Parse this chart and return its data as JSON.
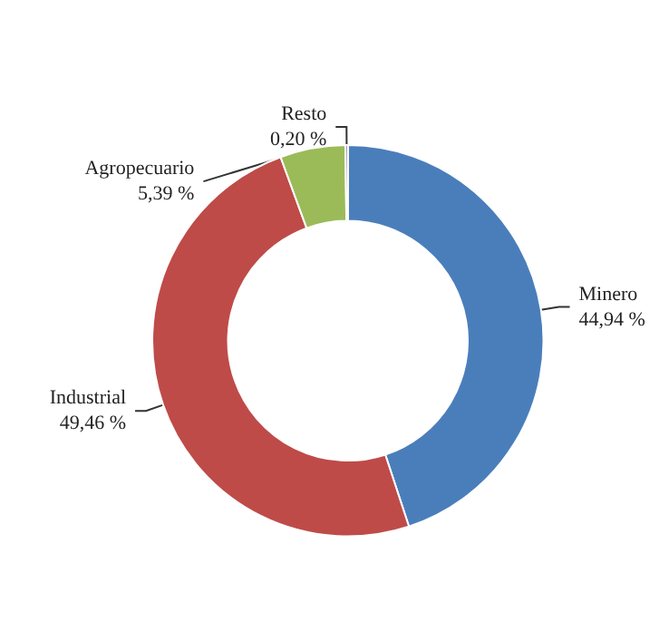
{
  "chart_data": {
    "type": "donut",
    "categories": [
      "Minero",
      "Industrial",
      "Agropecuario",
      "Resto"
    ],
    "values": [
      44.94,
      49.46,
      5.39,
      0.2
    ],
    "colors": [
      "#4a7ebb",
      "#be4b48",
      "#9bbb59",
      "#8064a2"
    ],
    "value_labels": [
      "44,94 %",
      "49,46 %",
      "5,39 %",
      "0,20 %"
    ],
    "legend": false
  }
}
